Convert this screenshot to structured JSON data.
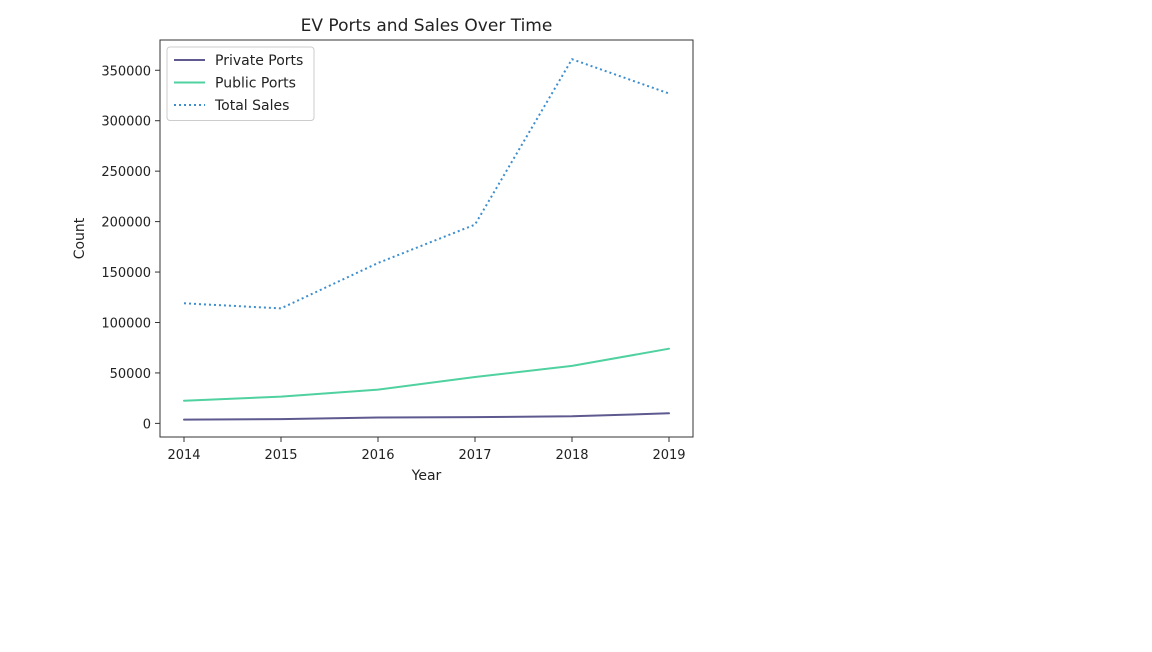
{
  "chart_data": {
    "type": "line",
    "title": "EV Ports and Sales Over Time",
    "xlabel": "Year",
    "ylabel": "Count",
    "x": [
      "2014",
      "2015",
      "2016",
      "2017",
      "2018",
      "2019"
    ],
    "ylim": [
      -13500,
      380000
    ],
    "yticks": [
      "0",
      "50000",
      "100000",
      "150000",
      "200000",
      "250000",
      "300000",
      "350000"
    ],
    "grid": false,
    "legend": "top-left",
    "series": [
      {
        "name": "Private Ports",
        "values": [
          3700,
          4200,
          5800,
          6200,
          7000,
          10000
        ],
        "color": "#5e5a8f",
        "style": "solid"
      },
      {
        "name": "Public Ports",
        "values": [
          22500,
          26500,
          33500,
          46000,
          57000,
          74000
        ],
        "color": "#4fd1a0",
        "style": "solid"
      },
      {
        "name": "Total Sales",
        "values": [
          119000,
          114000,
          159000,
          197000,
          361000,
          327000
        ],
        "color": "#3d8ecf",
        "style": "dotted"
      }
    ]
  }
}
